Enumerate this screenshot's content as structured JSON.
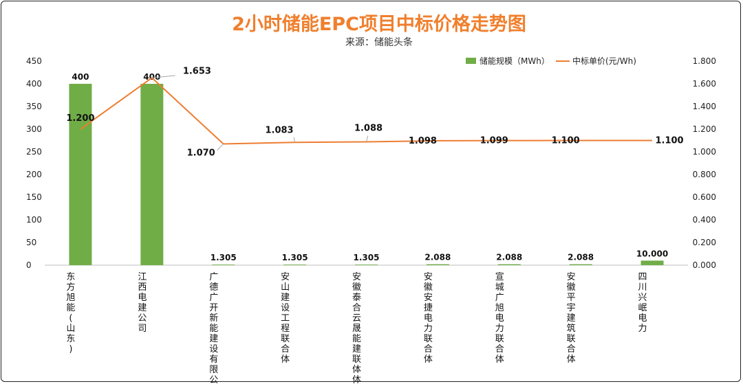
{
  "chart_data": {
    "type": "bar",
    "title": "2小时储能EPC项目中标价格走势图",
    "subtitle": "来源：储能头条",
    "categories": [
      "东方旭能(山东)",
      "江西电建公司",
      "广德广开新能建设有限公司",
      "安山建设工程联合体",
      "安徽泰合云晟能建联体体",
      "安徽安捷电力联合体",
      "宣城广旭电力联合体",
      "安徽平宇建筑联合体",
      "四川兴岷电力"
    ],
    "series": [
      {
        "name": "储能规模（MWh）",
        "type": "bar",
        "axis": "left",
        "color": "#70ad47",
        "values": [
          400,
          400,
          1.305,
          1.305,
          1.305,
          2.088,
          2.088,
          2.088,
          10.0
        ],
        "labels": [
          "400",
          "400",
          "1.305",
          "1.305",
          "1.305",
          "2.088",
          "2.088",
          "2.088",
          "10.000"
        ]
      },
      {
        "name": "中标单价(元/Wh)",
        "type": "line",
        "axis": "right",
        "color": "#ed7d31",
        "values": [
          1.2,
          1.653,
          1.07,
          1.083,
          1.088,
          1.098,
          1.099,
          1.1,
          1.1
        ],
        "labels": [
          "1.200",
          "1.653",
          "1.070",
          "1.083",
          "1.088",
          "1.098",
          "1.099",
          "1.100",
          "1.100"
        ]
      }
    ],
    "y_left": {
      "min": 0,
      "max": 450,
      "step": 50,
      "ticks": [
        "0",
        "50",
        "100",
        "150",
        "200",
        "250",
        "300",
        "350",
        "400",
        "450"
      ]
    },
    "y_right": {
      "min": 0,
      "max": 1.8,
      "step": 0.2,
      "ticks": [
        "0.000",
        "0.200",
        "0.400",
        "0.600",
        "0.800",
        "1.000",
        "1.200",
        "1.400",
        "1.600",
        "1.800"
      ]
    },
    "legend_position": "top-right",
    "grid": false
  }
}
